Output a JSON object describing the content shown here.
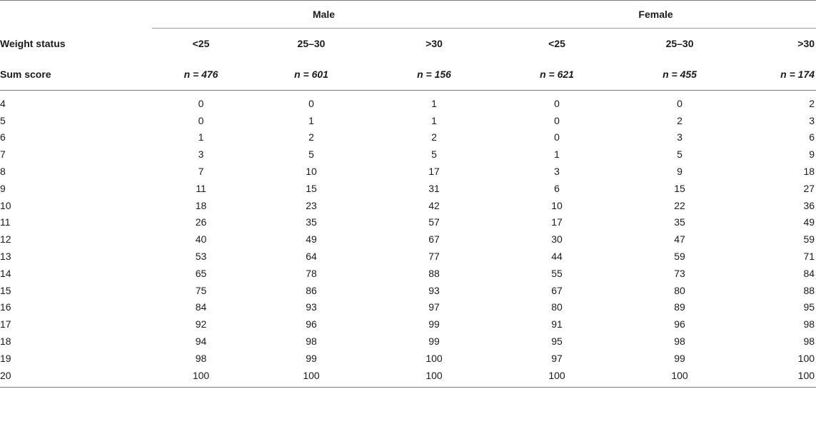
{
  "groups": {
    "male": "Male",
    "female": "Female"
  },
  "row_labels": {
    "weight_status": "Weight status",
    "sum_score": "Sum score"
  },
  "columns": [
    {
      "group": "Male",
      "label": "<25",
      "n": "n = 476"
    },
    {
      "group": "Male",
      "label": "25–30",
      "n": "n = 601"
    },
    {
      "group": "Male",
      "label": ">30",
      "n": "n = 156"
    },
    {
      "group": "Female",
      "label": "<25",
      "n": "n = 621"
    },
    {
      "group": "Female",
      "label": "25–30",
      "n": "n = 455"
    },
    {
      "group": "Female",
      "label": ">30",
      "n": "n = 174"
    }
  ],
  "rows": [
    {
      "score": "4",
      "values": [
        "0",
        "0",
        "1",
        "0",
        "0",
        "2"
      ]
    },
    {
      "score": "5",
      "values": [
        "0",
        "1",
        "1",
        "0",
        "2",
        "3"
      ]
    },
    {
      "score": "6",
      "values": [
        "1",
        "2",
        "2",
        "0",
        "3",
        "6"
      ]
    },
    {
      "score": "7",
      "values": [
        "3",
        "5",
        "5",
        "1",
        "5",
        "9"
      ]
    },
    {
      "score": "8",
      "values": [
        "7",
        "10",
        "17",
        "3",
        "9",
        "18"
      ]
    },
    {
      "score": "9",
      "values": [
        "11",
        "15",
        "31",
        "6",
        "15",
        "27"
      ]
    },
    {
      "score": "10",
      "values": [
        "18",
        "23",
        "42",
        "10",
        "22",
        "36"
      ]
    },
    {
      "score": "11",
      "values": [
        "26",
        "35",
        "57",
        "17",
        "35",
        "49"
      ]
    },
    {
      "score": "12",
      "values": [
        "40",
        "49",
        "67",
        "30",
        "47",
        "59"
      ]
    },
    {
      "score": "13",
      "values": [
        "53",
        "64",
        "77",
        "44",
        "59",
        "71"
      ]
    },
    {
      "score": "14",
      "values": [
        "65",
        "78",
        "88",
        "55",
        "73",
        "84"
      ]
    },
    {
      "score": "15",
      "values": [
        "75",
        "86",
        "93",
        "67",
        "80",
        "88"
      ]
    },
    {
      "score": "16",
      "values": [
        "84",
        "93",
        "97",
        "80",
        "89",
        "95"
      ]
    },
    {
      "score": "17",
      "values": [
        "92",
        "96",
        "99",
        "91",
        "96",
        "98"
      ]
    },
    {
      "score": "18",
      "values": [
        "94",
        "98",
        "99",
        "95",
        "98",
        "98"
      ]
    },
    {
      "score": "19",
      "values": [
        "98",
        "99",
        "100",
        "97",
        "99",
        "100"
      ]
    },
    {
      "score": "20",
      "values": [
        "100",
        "100",
        "100",
        "100",
        "100",
        "100"
      ]
    }
  ]
}
